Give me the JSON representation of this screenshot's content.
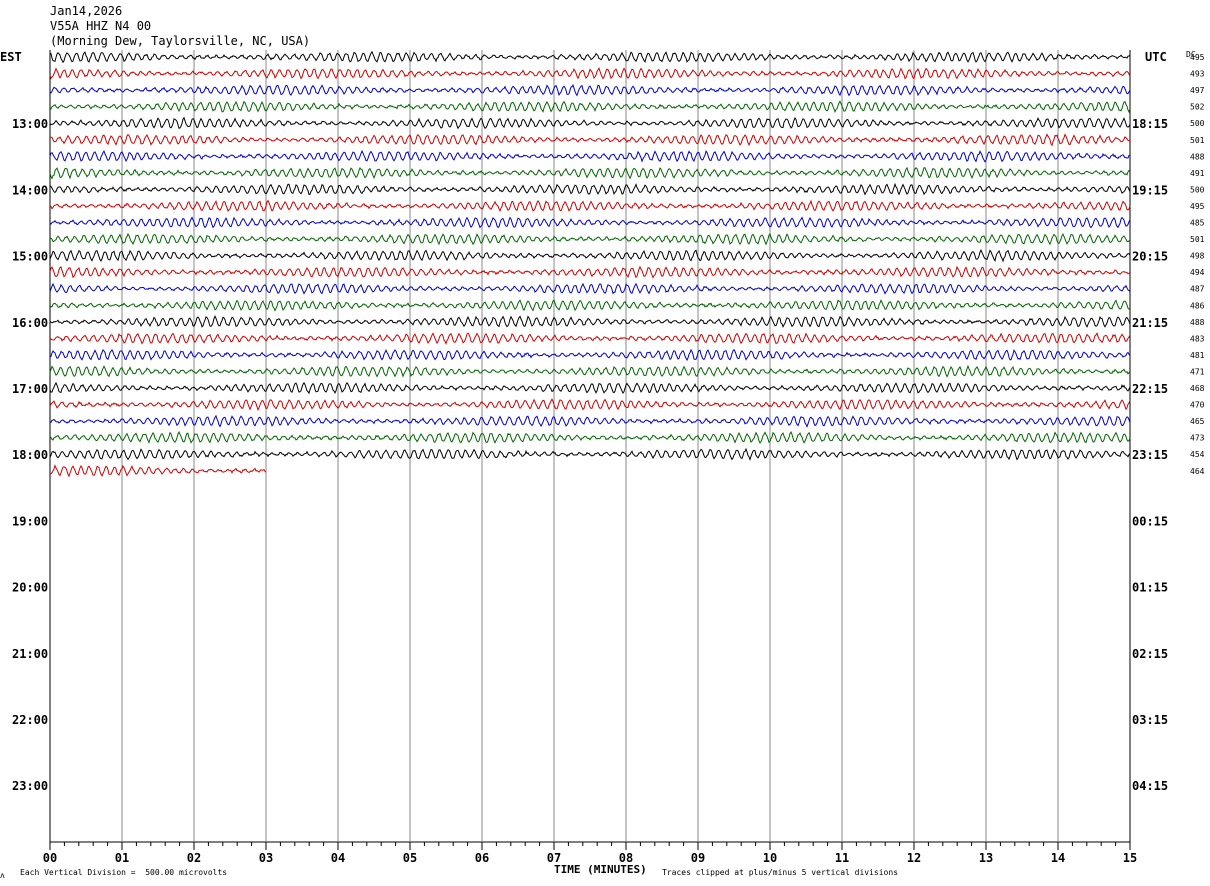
{
  "header": {
    "date": "Jan14,2026",
    "station": "V55A HHZ N4 00",
    "location": "(Morning Dew, Taylorsville, NC, USA)"
  },
  "labels": {
    "left_zone": "EST",
    "right_zone": "UTC",
    "dc_header": "DC"
  },
  "footer": {
    "scale_note": "Each Vertical Division =  500.00 microvolts",
    "xlabel": "TIME (MINUTES)",
    "clip_note": "Traces clipped at plus/minus 5 vertical divisions"
  },
  "colors": {
    "trace_cycle": [
      "#000000",
      "#d00000",
      "#0000cc",
      "#006600"
    ],
    "grid": "#888888"
  },
  "chart_data": {
    "type": "line",
    "xlabel": "TIME (MINUTES)",
    "x_ticks": [
      "00",
      "01",
      "02",
      "03",
      "04",
      "05",
      "06",
      "07",
      "08",
      "09",
      "10",
      "11",
      "12",
      "13",
      "14",
      "15"
    ],
    "xlim": [
      0,
      15
    ],
    "rows_total": 48,
    "rows_per_hour": 4,
    "est_hour_labels": [
      "13:00",
      "14:00",
      "15:00",
      "16:00",
      "17:00",
      "18:00",
      "19:00",
      "20:00",
      "21:00",
      "22:00",
      "23:00"
    ],
    "utc_hour_labels": [
      "18:15",
      "19:15",
      "20:15",
      "21:15",
      "22:15",
      "23:15",
      "00:15",
      "01:15",
      "02:15",
      "03:15",
      "04:15"
    ],
    "hour_label_start_row": 4,
    "traces": [
      {
        "row": 0,
        "dc": "495",
        "minutes": 15
      },
      {
        "row": 1,
        "dc": "493",
        "minutes": 15
      },
      {
        "row": 2,
        "dc": "497",
        "minutes": 15
      },
      {
        "row": 3,
        "dc": "502",
        "minutes": 15
      },
      {
        "row": 4,
        "dc": "500",
        "minutes": 15
      },
      {
        "row": 5,
        "dc": "501",
        "minutes": 15
      },
      {
        "row": 6,
        "dc": "488",
        "minutes": 15
      },
      {
        "row": 7,
        "dc": "491",
        "minutes": 15
      },
      {
        "row": 8,
        "dc": "500",
        "minutes": 15
      },
      {
        "row": 9,
        "dc": "495",
        "minutes": 15
      },
      {
        "row": 10,
        "dc": "485",
        "minutes": 15
      },
      {
        "row": 11,
        "dc": "501",
        "minutes": 15
      },
      {
        "row": 12,
        "dc": "498",
        "minutes": 15
      },
      {
        "row": 13,
        "dc": "494",
        "minutes": 15
      },
      {
        "row": 14,
        "dc": "487",
        "minutes": 15
      },
      {
        "row": 15,
        "dc": "486",
        "minutes": 15
      },
      {
        "row": 16,
        "dc": "488",
        "minutes": 15
      },
      {
        "row": 17,
        "dc": "483",
        "minutes": 15
      },
      {
        "row": 18,
        "dc": "481",
        "minutes": 15
      },
      {
        "row": 19,
        "dc": "471",
        "minutes": 15
      },
      {
        "row": 20,
        "dc": "468",
        "minutes": 15
      },
      {
        "row": 21,
        "dc": "470",
        "minutes": 15
      },
      {
        "row": 22,
        "dc": "465",
        "minutes": 15
      },
      {
        "row": 23,
        "dc": "473",
        "minutes": 15
      },
      {
        "row": 24,
        "dc": "454",
        "minutes": 15
      },
      {
        "row": 25,
        "dc": "464",
        "minutes": 3
      }
    ]
  }
}
